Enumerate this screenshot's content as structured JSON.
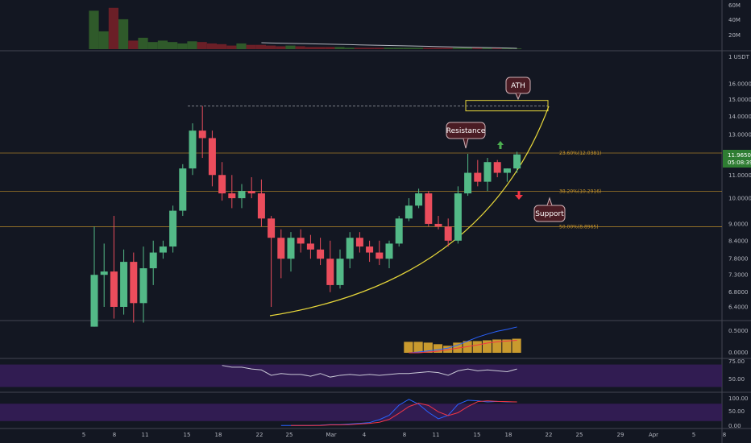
{
  "theme": {
    "background": "#131722",
    "up_color": "#53b987",
    "down_color": "#eb4d5c",
    "volume_up": "#2f5a2a",
    "volume_down": "#6b1f27",
    "fib_color": "#c8952a",
    "curve_color": "#e6d63a",
    "rsi_color": "#c9c9d6",
    "rsi_band": "#3c1f63",
    "stoch_k": "#2962ff",
    "stoch_d": "#f23645",
    "osc_bar": "#c99a2e",
    "osc_line_up": "#2962ff",
    "osc_line_down": "#f23645",
    "price_tag_bg": "#2e7d32"
  },
  "price_axis": {
    "unit": "1 USDT",
    "ticks": [
      "16.0000",
      "15.0000",
      "14.0000",
      "13.0000",
      "12.0000",
      "11.0000",
      "10.0000",
      "9.0000",
      "8.4000",
      "7.8000",
      "7.3000",
      "6.8000",
      "6.4000"
    ],
    "current_price": "11.9650",
    "countdown": "05:08:39"
  },
  "volume_axis": {
    "ticks": [
      "60M",
      "40M",
      "20M"
    ]
  },
  "osc_axis": {
    "ticks": [
      "0.5000",
      "0.0000"
    ]
  },
  "rsi_axis": {
    "ticks": [
      "75.00",
      "50.00"
    ]
  },
  "stoch_axis": {
    "ticks": [
      "100.00",
      "50.00",
      "0.00"
    ]
  },
  "time_axis": {
    "ticks": [
      "5",
      "8",
      "11",
      "15",
      "18",
      "22",
      "25",
      "Mar",
      "4",
      "8",
      "11",
      "15",
      "18",
      "22",
      "25",
      "29",
      "Apr",
      "5",
      "8"
    ]
  },
  "fib_levels": [
    {
      "label": "23.60%(12.0381)",
      "price": 12.0381
    },
    {
      "label": "38.20%(10.2916)",
      "price": 10.2916
    },
    {
      "label": "50.00%(8.8965)",
      "price": 8.8965
    }
  ],
  "callouts": {
    "ath": "ATH",
    "resistance": "Resistance",
    "support": "Support"
  },
  "chart_data": {
    "type": "candlestick",
    "symbol_unit": "USDT",
    "candles": [
      {
        "o": 5.9,
        "h": 8.9,
        "l": 5.9,
        "c": 7.3
      },
      {
        "o": 7.3,
        "h": 8.3,
        "l": 6.4,
        "c": 7.4
      },
      {
        "o": 7.4,
        "h": 9.3,
        "l": 6.1,
        "c": 6.4
      },
      {
        "o": 6.4,
        "h": 8.1,
        "l": 6.2,
        "c": 7.7
      },
      {
        "o": 7.7,
        "h": 8.0,
        "l": 6.0,
        "c": 6.5
      },
      {
        "o": 6.5,
        "h": 8.2,
        "l": 6.0,
        "c": 7.5
      },
      {
        "o": 7.5,
        "h": 8.4,
        "l": 7.0,
        "c": 8.0
      },
      {
        "o": 8.0,
        "h": 8.4,
        "l": 7.8,
        "c": 8.2
      },
      {
        "o": 8.2,
        "h": 9.7,
        "l": 8.0,
        "c": 9.5
      },
      {
        "o": 9.5,
        "h": 11.5,
        "l": 9.3,
        "c": 11.3
      },
      {
        "o": 11.3,
        "h": 13.6,
        "l": 11.0,
        "c": 13.2
      },
      {
        "o": 13.2,
        "h": 14.6,
        "l": 11.8,
        "c": 12.8
      },
      {
        "o": 12.8,
        "h": 13.2,
        "l": 10.5,
        "c": 11.0
      },
      {
        "o": 11.0,
        "h": 11.6,
        "l": 9.9,
        "c": 10.2
      },
      {
        "o": 10.2,
        "h": 11.0,
        "l": 9.6,
        "c": 10.0
      },
      {
        "o": 10.0,
        "h": 10.6,
        "l": 9.6,
        "c": 10.3
      },
      {
        "o": 10.3,
        "h": 10.9,
        "l": 10.0,
        "c": 10.2
      },
      {
        "o": 10.2,
        "h": 10.8,
        "l": 8.9,
        "c": 9.2
      },
      {
        "o": 9.2,
        "h": 9.3,
        "l": 6.4,
        "c": 8.5
      },
      {
        "o": 8.5,
        "h": 8.8,
        "l": 7.2,
        "c": 7.8
      },
      {
        "o": 7.8,
        "h": 8.7,
        "l": 7.4,
        "c": 8.5
      },
      {
        "o": 8.5,
        "h": 8.8,
        "l": 8.0,
        "c": 8.3
      },
      {
        "o": 8.3,
        "h": 8.6,
        "l": 7.8,
        "c": 8.1
      },
      {
        "o": 8.1,
        "h": 8.5,
        "l": 7.6,
        "c": 7.8
      },
      {
        "o": 7.8,
        "h": 8.4,
        "l": 6.8,
        "c": 7.0
      },
      {
        "o": 7.0,
        "h": 8.1,
        "l": 6.9,
        "c": 7.8
      },
      {
        "o": 7.8,
        "h": 8.7,
        "l": 7.5,
        "c": 8.5
      },
      {
        "o": 8.5,
        "h": 8.7,
        "l": 8.0,
        "c": 8.2
      },
      {
        "o": 8.2,
        "h": 8.4,
        "l": 7.7,
        "c": 8.0
      },
      {
        "o": 8.0,
        "h": 8.4,
        "l": 7.6,
        "c": 7.8
      },
      {
        "o": 7.8,
        "h": 8.4,
        "l": 7.5,
        "c": 8.3
      },
      {
        "o": 8.3,
        "h": 9.3,
        "l": 8.2,
        "c": 9.2
      },
      {
        "o": 9.2,
        "h": 10.0,
        "l": 9.1,
        "c": 9.7
      },
      {
        "o": 9.7,
        "h": 10.4,
        "l": 9.6,
        "c": 10.2
      },
      {
        "o": 10.2,
        "h": 10.3,
        "l": 8.9,
        "c": 9.0
      },
      {
        "o": 9.0,
        "h": 9.3,
        "l": 8.8,
        "c": 8.9
      },
      {
        "o": 8.9,
        "h": 9.2,
        "l": 8.2,
        "c": 8.4
      },
      {
        "o": 8.4,
        "h": 10.5,
        "l": 8.3,
        "c": 10.2
      },
      {
        "o": 10.2,
        "h": 12.0,
        "l": 10.1,
        "c": 11.1
      },
      {
        "o": 11.1,
        "h": 11.7,
        "l": 10.5,
        "c": 10.7
      },
      {
        "o": 10.7,
        "h": 11.8,
        "l": 10.3,
        "c": 11.6
      },
      {
        "o": 11.6,
        "h": 11.7,
        "l": 10.9,
        "c": 11.1
      },
      {
        "o": 11.1,
        "h": 11.3,
        "l": 10.7,
        "c": 11.3
      },
      {
        "o": 11.3,
        "h": 12.1,
        "l": 11.1,
        "c": 11.97
      }
    ],
    "volume_millions": [
      54,
      25,
      58,
      42,
      12,
      16,
      10,
      12,
      10,
      8,
      11,
      10,
      8,
      7,
      5,
      8,
      6,
      6,
      5,
      4,
      5,
      4,
      3,
      3,
      3,
      3,
      2,
      2,
      2,
      2,
      2,
      2,
      2,
      2,
      2,
      2,
      2,
      2,
      2,
      2,
      2,
      2,
      2,
      1
    ],
    "rsi": [
      null,
      null,
      null,
      null,
      null,
      null,
      null,
      null,
      null,
      null,
      null,
      null,
      null,
      74,
      72,
      72,
      70,
      69,
      63,
      65,
      64,
      64,
      62,
      65,
      61,
      63,
      64,
      63,
      64,
      63,
      64,
      65,
      65,
      66,
      67,
      66,
      63,
      68,
      70,
      68,
      69,
      68,
      67,
      70
    ],
    "stoch_k": [
      null,
      null,
      null,
      null,
      null,
      null,
      null,
      null,
      null,
      null,
      null,
      null,
      null,
      null,
      null,
      null,
      null,
      null,
      null,
      5,
      5,
      5,
      5,
      6,
      8,
      8,
      10,
      12,
      15,
      25,
      40,
      75,
      95,
      78,
      50,
      28,
      40,
      78,
      92,
      90,
      86,
      88,
      86,
      86
    ],
    "stoch_d": [
      null,
      null,
      null,
      null,
      null,
      null,
      null,
      null,
      null,
      null,
      null,
      null,
      null,
      null,
      null,
      null,
      null,
      null,
      null,
      null,
      5,
      5,
      5,
      5,
      7,
      7,
      8,
      10,
      12,
      16,
      26,
      47,
      70,
      82,
      74,
      52,
      39,
      49,
      70,
      87,
      90,
      88,
      87,
      86
    ],
    "osc_bars": [
      null,
      null,
      null,
      null,
      null,
      null,
      null,
      null,
      null,
      null,
      null,
      null,
      null,
      null,
      null,
      null,
      null,
      null,
      null,
      null,
      null,
      null,
      null,
      null,
      null,
      null,
      null,
      null,
      null,
      null,
      null,
      null,
      0.28,
      0.28,
      0.26,
      0.22,
      0.18,
      0.26,
      0.3,
      0.3,
      0.32,
      0.34,
      0.34,
      0.36
    ],
    "osc_line1": [
      null,
      null,
      null,
      null,
      null,
      null,
      null,
      null,
      null,
      null,
      null,
      null,
      null,
      null,
      null,
      null,
      null,
      null,
      null,
      null,
      null,
      null,
      null,
      null,
      null,
      null,
      null,
      null,
      null,
      null,
      null,
      null,
      0.0,
      0.02,
      0.05,
      0.08,
      0.12,
      0.2,
      0.3,
      0.4,
      0.48,
      0.55,
      0.6,
      0.66
    ],
    "osc_line2": [
      null,
      null,
      null,
      null,
      null,
      null,
      null,
      null,
      null,
      null,
      null,
      null,
      null,
      null,
      null,
      null,
      null,
      null,
      null,
      null,
      null,
      null,
      null,
      null,
      null,
      null,
      null,
      null,
      null,
      null,
      null,
      null,
      0.0,
      0.0,
      0.02,
      0.04,
      0.08,
      0.12,
      0.16,
      0.2,
      0.25,
      0.28,
      0.3,
      0.32
    ],
    "ath_price": 14.6,
    "grid": false,
    "legend": "none"
  }
}
